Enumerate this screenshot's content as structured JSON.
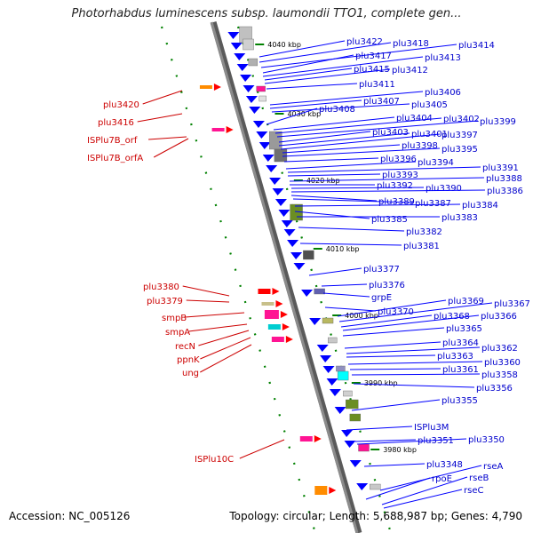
{
  "title": "Photorhabdus luminescens subsp. laumondii TTO1, complete gen...",
  "accession": "Accession: NC_005126",
  "summary": "Topology: circular; Length: 5,688,987 bp; Genes: 4,790",
  "colors": {
    "backbone": "#8c8c8c",
    "forward_gene": "#0000ff",
    "left_label": "#cc0000",
    "right_label": "#00008b",
    "tick_dot": "#008000"
  },
  "scale_labels": [
    "4040 kbp",
    "4030 kbp",
    "4020 kbp",
    "4010 kbp",
    "4000 kbp",
    "3990 kbp",
    "3980 kbp"
  ],
  "left_genes": [
    "plu3420",
    "plu3416",
    "ISPlu7B_orf",
    "ISPlu7B_orfA",
    "plu3380",
    "plu3379",
    "smpB",
    "smpA",
    "recN",
    "ppnK",
    "ung",
    "ISPlu10C"
  ],
  "right_genes": [
    "plu3422",
    "plu3418",
    "plu3414",
    "plu3417",
    "plu3413",
    "plu3415",
    "plu3412",
    "plu3411",
    "plu3406",
    "plu3407",
    "plu3405",
    "plu3408",
    "plu3404",
    "plu3402",
    "plu3399",
    "plu3403",
    "plu3401",
    "plu3397",
    "plu3398",
    "plu3395",
    "plu3396",
    "plu3394",
    "plu3391",
    "plu3393",
    "plu3388",
    "plu3392",
    "plu3390",
    "plu3386",
    "plu3389",
    "plu3387",
    "plu3384",
    "plu3385",
    "plu3383",
    "plu3382",
    "plu3381",
    "plu3377",
    "plu3376",
    "grpE",
    "plu3369",
    "plu3367",
    "plu3370",
    "plu3368",
    "plu3366",
    "plu3365",
    "plu3364",
    "plu3362",
    "plu3363",
    "plu3360",
    "plu3361",
    "plu3358",
    "plu3356",
    "plu3355",
    "ISPlu3M",
    "plu3351",
    "plu3350",
    "plu3348",
    "rseA",
    "rpoE",
    "rseB",
    "rseC"
  ]
}
